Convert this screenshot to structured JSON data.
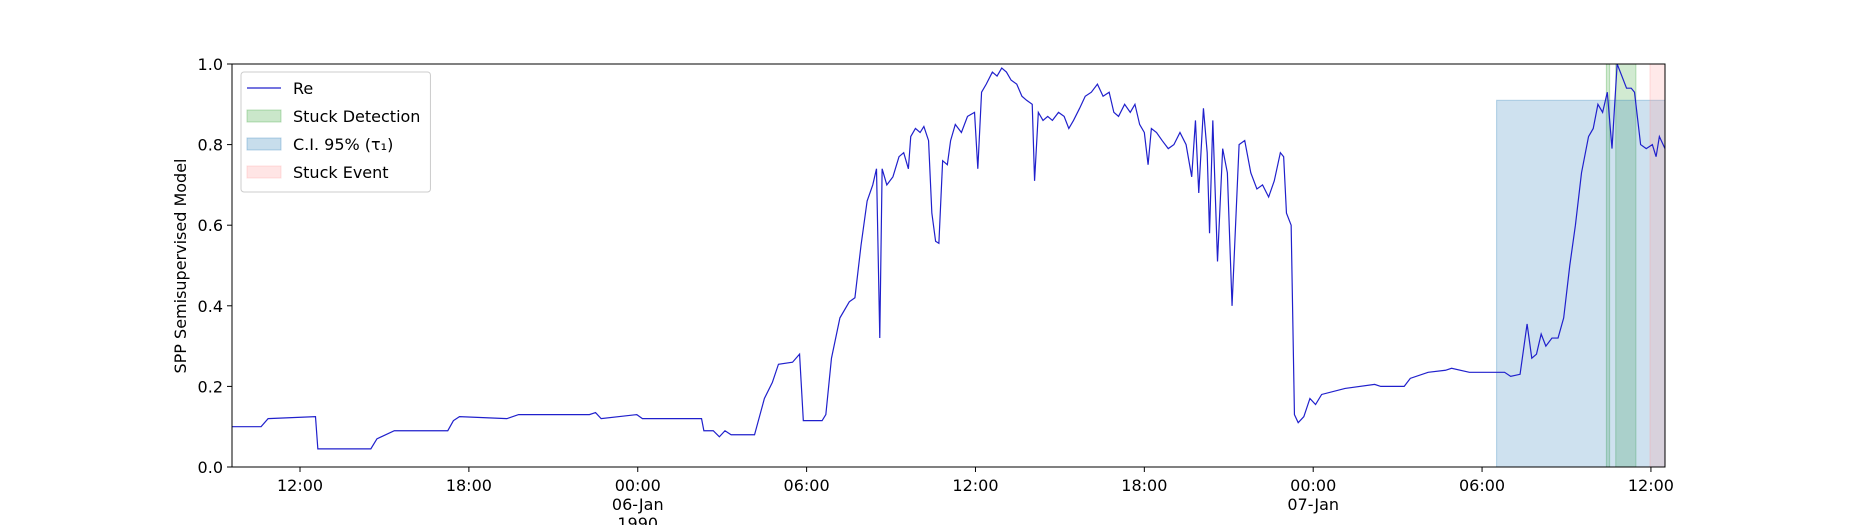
{
  "chart_data": {
    "type": "line",
    "y_label": "SPP Semisupervised Model",
    "xlim": [
      "1990-01-05T09:35",
      "1990-01-07T12:30"
    ],
    "ylim": [
      0,
      1
    ],
    "yticks": [
      {
        "value": 0,
        "label": "0.0"
      },
      {
        "value": 0.2,
        "label": "0.2"
      },
      {
        "value": 0.4,
        "label": "0.4"
      },
      {
        "value": 0.6,
        "label": "0.6"
      },
      {
        "value": 0.8,
        "label": "0.8"
      },
      {
        "value": 1,
        "label": "1.0"
      }
    ],
    "xticks": [
      {
        "value": "1990-01-05T12:00",
        "label": "12:00"
      },
      {
        "value": "1990-01-05T18:00",
        "label": "18:00"
      },
      {
        "value": "1990-01-06T00:00",
        "label": "00:00\n06-Jan\n1990"
      },
      {
        "value": "1990-01-06T06:00",
        "label": "06:00"
      },
      {
        "value": "1990-01-06T12:00",
        "label": "12:00"
      },
      {
        "value": "1990-01-06T18:00",
        "label": "18:00"
      },
      {
        "value": "1990-01-07T00:00",
        "label": "00:00\n07-Jan"
      },
      {
        "value": "1990-01-07T06:00",
        "label": "06:00"
      },
      {
        "value": "1990-01-07T12:00",
        "label": "12:00"
      }
    ],
    "legend": "upper left",
    "x": [
      "1990-01-05T09:35",
      "1990-01-05T10:37",
      "1990-01-05T10:52",
      "1990-01-05T12:33",
      "1990-01-05T12:38",
      "1990-01-05T14:31",
      "1990-01-05T14:44",
      "1990-01-05T15:21",
      "1990-01-05T17:15",
      "1990-01-05T17:27",
      "1990-01-05T17:40",
      "1990-01-05T19:21",
      "1990-01-05T19:46",
      "1990-01-05T22:17",
      "1990-01-05T22:30",
      "1990-01-05T22:42",
      "1990-01-05T23:58",
      "1990-01-06T00:10",
      "1990-01-06T02:16",
      "1990-01-06T02:21",
      "1990-01-06T02:41",
      "1990-01-06T02:54",
      "1990-01-06T03:06",
      "1990-01-06T03:19",
      "1990-01-06T04:09",
      "1990-01-06T04:30",
      "1990-01-06T04:47",
      "1990-01-06T05:00",
      "1990-01-06T05:30",
      "1990-01-06T05:45",
      "1990-01-06T05:53",
      "1990-01-06T06:33",
      "1990-01-06T06:41",
      "1990-01-06T06:53",
      "1990-01-06T07:11",
      "1990-01-06T07:31",
      "1990-01-06T07:43",
      "1990-01-06T07:56",
      "1990-01-06T08:09",
      "1990-01-06T08:21",
      "1990-01-06T08:29",
      "1990-01-06T08:36",
      "1990-01-06T08:41",
      "1990-01-06T08:51",
      "1990-01-06T09:04",
      "1990-01-06T09:17",
      "1990-01-06T09:27",
      "1990-01-06T09:37",
      "1990-01-06T09:42",
      "1990-01-06T09:52",
      "1990-01-06T10:02",
      "1990-01-06T10:10",
      "1990-01-06T10:20",
      "1990-01-06T10:27",
      "1990-01-06T10:35",
      "1990-01-06T10:42",
      "1990-01-06T10:50",
      "1990-01-06T11:00",
      "1990-01-06T11:07",
      "1990-01-06T11:17",
      "1990-01-06T11:30",
      "1990-01-06T11:43",
      "1990-01-06T11:58",
      "1990-01-06T12:05",
      "1990-01-06T12:13",
      "1990-01-06T12:23",
      "1990-01-06T12:36",
      "1990-01-06T12:46",
      "1990-01-06T12:56",
      "1990-01-06T13:06",
      "1990-01-06T13:16",
      "1990-01-06T13:28",
      "1990-01-06T13:39",
      "1990-01-06T13:49",
      "1990-01-06T14:01",
      "1990-01-06T14:06",
      "1990-01-06T14:14",
      "1990-01-06T14:24",
      "1990-01-06T14:34",
      "1990-01-06T14:44",
      "1990-01-06T14:57",
      "1990-01-06T15:09",
      "1990-01-06T15:19",
      "1990-01-06T15:29",
      "1990-01-06T15:42",
      "1990-01-06T15:54",
      "1990-01-06T16:07",
      "1990-01-06T16:20",
      "1990-01-06T16:32",
      "1990-01-06T16:45",
      "1990-01-06T16:55",
      "1990-01-06T17:05",
      "1990-01-06T17:18",
      "1990-01-06T17:30",
      "1990-01-06T17:40",
      "1990-01-06T17:50",
      "1990-01-06T18:00",
      "1990-01-06T18:08",
      "1990-01-06T18:15",
      "1990-01-06T18:26",
      "1990-01-06T18:38",
      "1990-01-06T18:51",
      "1990-01-06T19:03",
      "1990-01-06T19:16",
      "1990-01-06T19:29",
      "1990-01-06T19:41",
      "1990-01-06T19:49",
      "1990-01-06T19:56",
      "1990-01-06T20:06",
      "1990-01-06T20:14",
      "1990-01-06T20:19",
      "1990-01-06T20:26",
      "1990-01-06T20:36",
      "1990-01-06T20:47",
      "1990-01-06T20:57",
      "1990-01-06T21:07",
      "1990-01-06T21:22",
      "1990-01-06T21:34",
      "1990-01-06T21:47",
      "1990-01-06T22:00",
      "1990-01-06T22:12",
      "1990-01-06T22:25",
      "1990-01-06T22:37",
      "1990-01-06T22:50",
      "1990-01-06T22:57",
      "1990-01-06T23:03",
      "1990-01-06T23:13",
      "1990-01-06T23:20",
      "1990-01-06T23:28",
      "1990-01-06T23:40",
      "1990-01-06T23:53",
      "1990-01-07T00:05",
      "1990-01-07T00:18",
      "1990-01-07T01:08",
      "1990-01-07T02:11",
      "1990-01-07T02:24",
      "1990-01-07T03:14",
      "1990-01-07T03:27",
      "1990-01-07T04:05",
      "1990-01-07T04:42",
      "1990-01-07T04:55",
      "1990-01-07T05:33",
      "1990-01-07T06:48",
      "1990-01-07T07:01",
      "1990-01-07T07:21",
      "1990-01-07T07:36",
      "1990-01-07T07:46",
      "1990-01-07T07:56",
      "1990-01-07T08:06",
      "1990-01-07T08:16",
      "1990-01-07T08:29",
      "1990-01-07T08:42",
      "1990-01-07T08:54",
      "1990-01-07T09:07",
      "1990-01-07T09:19",
      "1990-01-07T09:32",
      "1990-01-07T09:47",
      "1990-01-07T09:57",
      "1990-01-07T10:07",
      "1990-01-07T10:17",
      "1990-01-07T10:27",
      "1990-01-07T10:37",
      "1990-01-07T10:48",
      "1990-01-07T10:58",
      "1990-01-07T11:08",
      "1990-01-07T11:18",
      "1990-01-07T11:25",
      "1990-01-07T11:38",
      "1990-01-07T11:50",
      "1990-01-07T12:03",
      "1990-01-07T12:11",
      "1990-01-07T12:18",
      "1990-01-07T12:30"
    ],
    "series": [
      {
        "name": "Re",
        "color": "#2020cc",
        "values": [
          0.1,
          0.1,
          0.12,
          0.125,
          0.045,
          0.045,
          0.07,
          0.09,
          0.09,
          0.115,
          0.125,
          0.12,
          0.13,
          0.13,
          0.135,
          0.12,
          0.13,
          0.12,
          0.12,
          0.09,
          0.09,
          0.075,
          0.09,
          0.08,
          0.08,
          0.17,
          0.21,
          0.255,
          0.26,
          0.28,
          0.115,
          0.115,
          0.13,
          0.27,
          0.37,
          0.41,
          0.42,
          0.55,
          0.66,
          0.7,
          0.74,
          0.32,
          0.74,
          0.7,
          0.72,
          0.77,
          0.78,
          0.74,
          0.82,
          0.84,
          0.83,
          0.845,
          0.81,
          0.63,
          0.56,
          0.555,
          0.76,
          0.75,
          0.81,
          0.85,
          0.83,
          0.87,
          0.88,
          0.74,
          0.93,
          0.95,
          0.98,
          0.97,
          0.99,
          0.98,
          0.96,
          0.95,
          0.92,
          0.91,
          0.9,
          0.71,
          0.88,
          0.86,
          0.87,
          0.86,
          0.88,
          0.87,
          0.84,
          0.86,
          0.89,
          0.92,
          0.93,
          0.95,
          0.92,
          0.93,
          0.88,
          0.87,
          0.9,
          0.88,
          0.9,
          0.85,
          0.83,
          0.75,
          0.84,
          0.83,
          0.81,
          0.79,
          0.8,
          0.83,
          0.8,
          0.72,
          0.86,
          0.68,
          0.89,
          0.78,
          0.58,
          0.86,
          0.51,
          0.79,
          0.73,
          0.4,
          0.8,
          0.81,
          0.73,
          0.69,
          0.7,
          0.67,
          0.71,
          0.78,
          0.77,
          0.63,
          0.6,
          0.13,
          0.11,
          0.125,
          0.17,
          0.155,
          0.18,
          0.195,
          0.205,
          0.2,
          0.2,
          0.22,
          0.235,
          0.24,
          0.245,
          0.235,
          0.235,
          0.225,
          0.23,
          0.355,
          0.27,
          0.28,
          0.33,
          0.3,
          0.32,
          0.32,
          0.37,
          0.5,
          0.6,
          0.73,
          0.82,
          0.84,
          0.9,
          0.88,
          0.93,
          0.79,
          1.0,
          0.97,
          0.94,
          0.94,
          0.93,
          0.8,
          0.79,
          0.8,
          0.77,
          0.82,
          0.79
        ]
      }
    ],
    "spans": [
      {
        "name": "Stuck Detection",
        "color": "#2ca02c",
        "top": 1,
        "ranges": [
          [
            "1990-01-07T10:25",
            "1990-01-07T10:32"
          ],
          [
            "1990-01-07T10:45",
            "1990-01-07T11:28"
          ]
        ]
      },
      {
        "name": "C.I. 95% (τ₁)",
        "color": "#1f77b4",
        "top": 0.91,
        "ranges": [
          [
            "1990-01-07T06:31",
            "1990-01-07T12:30"
          ]
        ]
      },
      {
        "name": "Stuck Event",
        "color": "#ff9999",
        "top": 1,
        "ranges": [
          [
            "1990-01-07T11:58",
            "1990-01-07T12:30"
          ]
        ]
      }
    ]
  }
}
